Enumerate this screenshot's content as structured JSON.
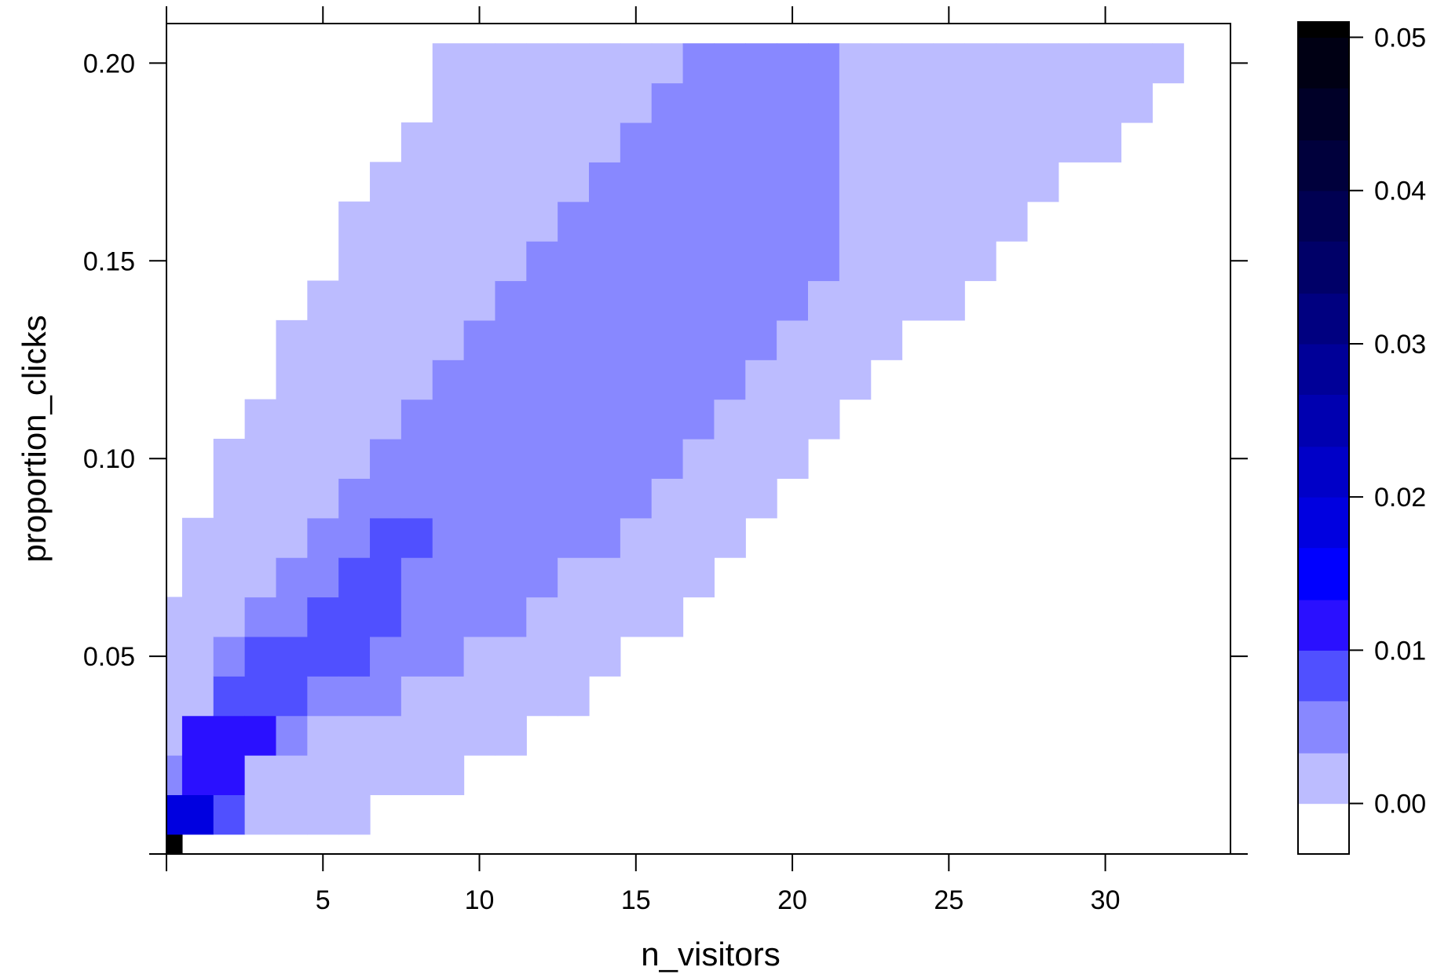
{
  "chart_data": {
    "type": "heatmap",
    "xlabel": "n_visitors",
    "ylabel": "proportion_clicks",
    "xlim": [
      0,
      34
    ],
    "ylim": [
      0,
      0.21
    ],
    "x_ticks": [
      5,
      10,
      15,
      20,
      25,
      30
    ],
    "x_tick_labels": [
      "5",
      "10",
      "15",
      "20",
      "25",
      "30"
    ],
    "y_ticks": [
      0.05,
      0.1,
      0.15,
      0.2
    ],
    "y_tick_labels": [
      "0.05",
      "0.10",
      "0.15",
      "0.20"
    ],
    "x_bins": "integer n_visitors 0-33, each cell spans x-0.5 to x+0.5",
    "y_bins": "proportion_clicks 0.00-0.20 in steps of 0.01, each cell spans y-0.005 to y+0.005",
    "colorbar": {
      "range": [
        -0.0033,
        0.051
      ],
      "ticks": [
        0.0,
        0.01,
        0.02,
        0.03,
        0.04,
        0.05
      ],
      "tick_labels": [
        "0.00",
        "0.01",
        "0.02",
        "0.03",
        "0.04",
        "0.05"
      ],
      "levels": [
        {
          "lo": -0.0033,
          "hi": 0.0,
          "color": "#ffffff"
        },
        {
          "lo": 0.0,
          "hi": 0.0033,
          "color": "#bcbcff"
        },
        {
          "lo": 0.0033,
          "hi": 0.0067,
          "color": "#8888ff"
        },
        {
          "lo": 0.0067,
          "hi": 0.01,
          "color": "#5050ff"
        },
        {
          "lo": 0.01,
          "hi": 0.0133,
          "color": "#2a10ff"
        },
        {
          "lo": 0.0133,
          "hi": 0.0167,
          "color": "#0000ff"
        },
        {
          "lo": 0.0167,
          "hi": 0.02,
          "color": "#0000e0"
        },
        {
          "lo": 0.02,
          "hi": 0.0233,
          "color": "#0000c8"
        },
        {
          "lo": 0.0233,
          "hi": 0.0267,
          "color": "#0000b0"
        },
        {
          "lo": 0.0267,
          "hi": 0.03,
          "color": "#000098"
        },
        {
          "lo": 0.03,
          "hi": 0.0333,
          "color": "#000080"
        },
        {
          "lo": 0.0333,
          "hi": 0.0367,
          "color": "#000068"
        },
        {
          "lo": 0.0367,
          "hi": 0.04,
          "color": "#000052"
        },
        {
          "lo": 0.04,
          "hi": 0.0433,
          "color": "#00003c"
        },
        {
          "lo": 0.0433,
          "hi": 0.0467,
          "color": "#000028"
        },
        {
          "lo": 0.0467,
          "hi": 0.05,
          "color": "#000014"
        },
        {
          "lo": 0.05,
          "hi": 0.051,
          "color": "#000000"
        }
      ]
    },
    "level_colors": [
      "#ffffff",
      "#bcbcff",
      "#8888ff",
      "#5050ff",
      "#2a10ff",
      "#0000e0",
      "#000000"
    ],
    "column_runs": [
      {
        "x": 0,
        "runs": [
          [
            0,
            0,
            6
          ],
          [
            1,
            1,
            5
          ],
          [
            2,
            2,
            2
          ],
          [
            3,
            6,
            1
          ]
        ]
      },
      {
        "x": 1,
        "runs": [
          [
            1,
            1,
            5
          ],
          [
            2,
            3,
            4
          ],
          [
            4,
            8,
            1
          ]
        ]
      },
      {
        "x": 2,
        "runs": [
          [
            1,
            1,
            3
          ],
          [
            2,
            3,
            4
          ],
          [
            4,
            4,
            3
          ],
          [
            5,
            5,
            2
          ],
          [
            6,
            10,
            1
          ]
        ]
      },
      {
        "x": 3,
        "runs": [
          [
            1,
            2,
            1
          ],
          [
            3,
            3,
            4
          ],
          [
            4,
            5,
            3
          ],
          [
            6,
            6,
            2
          ],
          [
            7,
            11,
            1
          ]
        ]
      },
      {
        "x": 4,
        "runs": [
          [
            1,
            2,
            1
          ],
          [
            3,
            3,
            2
          ],
          [
            4,
            5,
            3
          ],
          [
            6,
            7,
            2
          ],
          [
            8,
            13,
            1
          ]
        ]
      },
      {
        "x": 5,
        "runs": [
          [
            1,
            3,
            1
          ],
          [
            4,
            4,
            2
          ],
          [
            5,
            6,
            3
          ],
          [
            7,
            8,
            2
          ],
          [
            9,
            14,
            1
          ]
        ]
      },
      {
        "x": 6,
        "runs": [
          [
            1,
            3,
            1
          ],
          [
            4,
            4,
            2
          ],
          [
            5,
            7,
            3
          ],
          [
            8,
            9,
            2
          ],
          [
            10,
            16,
            1
          ]
        ]
      },
      {
        "x": 7,
        "runs": [
          [
            2,
            3,
            1
          ],
          [
            4,
            5,
            2
          ],
          [
            6,
            8,
            3
          ],
          [
            9,
            10,
            2
          ],
          [
            11,
            17,
            1
          ]
        ]
      },
      {
        "x": 8,
        "runs": [
          [
            2,
            4,
            1
          ],
          [
            5,
            7,
            2
          ],
          [
            8,
            8,
            3
          ],
          [
            9,
            11,
            2
          ],
          [
            12,
            18,
            1
          ]
        ]
      },
      {
        "x": 9,
        "runs": [
          [
            2,
            4,
            1
          ],
          [
            5,
            12,
            2
          ],
          [
            13,
            20,
            1
          ]
        ]
      },
      {
        "x": 10,
        "runs": [
          [
            3,
            5,
            1
          ],
          [
            6,
            13,
            2
          ],
          [
            14,
            20,
            1
          ]
        ]
      },
      {
        "x": 11,
        "runs": [
          [
            3,
            5,
            1
          ],
          [
            6,
            14,
            2
          ],
          [
            15,
            20,
            1
          ]
        ]
      },
      {
        "x": 12,
        "runs": [
          [
            4,
            6,
            1
          ],
          [
            7,
            15,
            2
          ],
          [
            16,
            20,
            1
          ]
        ]
      },
      {
        "x": 13,
        "runs": [
          [
            4,
            7,
            1
          ],
          [
            8,
            16,
            2
          ],
          [
            17,
            20,
            1
          ]
        ]
      },
      {
        "x": 14,
        "runs": [
          [
            5,
            7,
            1
          ],
          [
            8,
            17,
            2
          ],
          [
            18,
            20,
            1
          ]
        ]
      },
      {
        "x": 15,
        "runs": [
          [
            6,
            8,
            1
          ],
          [
            9,
            18,
            2
          ],
          [
            19,
            20,
            1
          ]
        ]
      },
      {
        "x": 16,
        "runs": [
          [
            6,
            9,
            1
          ],
          [
            10,
            19,
            2
          ],
          [
            20,
            20,
            1
          ]
        ]
      },
      {
        "x": 17,
        "runs": [
          [
            7,
            10,
            1
          ],
          [
            11,
            20,
            2
          ]
        ]
      },
      {
        "x": 18,
        "runs": [
          [
            8,
            11,
            1
          ],
          [
            12,
            20,
            2
          ]
        ]
      },
      {
        "x": 19,
        "runs": [
          [
            9,
            12,
            1
          ],
          [
            13,
            20,
            2
          ]
        ]
      },
      {
        "x": 20,
        "runs": [
          [
            10,
            13,
            1
          ],
          [
            14,
            20,
            2
          ]
        ]
      },
      {
        "x": 21,
        "runs": [
          [
            11,
            14,
            1
          ],
          [
            15,
            20,
            2
          ]
        ]
      },
      {
        "x": 22,
        "runs": [
          [
            12,
            20,
            1
          ]
        ]
      },
      {
        "x": 23,
        "runs": [
          [
            13,
            20,
            1
          ]
        ]
      },
      {
        "x": 24,
        "runs": [
          [
            14,
            20,
            1
          ]
        ]
      },
      {
        "x": 25,
        "runs": [
          [
            14,
            20,
            1
          ]
        ]
      },
      {
        "x": 26,
        "runs": [
          [
            15,
            20,
            1
          ]
        ]
      },
      {
        "x": 27,
        "runs": [
          [
            16,
            20,
            1
          ]
        ]
      },
      {
        "x": 28,
        "runs": [
          [
            17,
            20,
            1
          ]
        ]
      },
      {
        "x": 29,
        "runs": [
          [
            18,
            20,
            1
          ]
        ]
      },
      {
        "x": 30,
        "runs": [
          [
            18,
            20,
            1
          ]
        ]
      },
      {
        "x": 31,
        "runs": [
          [
            19,
            20,
            1
          ]
        ]
      },
      {
        "x": 32,
        "runs": [
          [
            20,
            20,
            1
          ]
        ]
      }
    ]
  }
}
